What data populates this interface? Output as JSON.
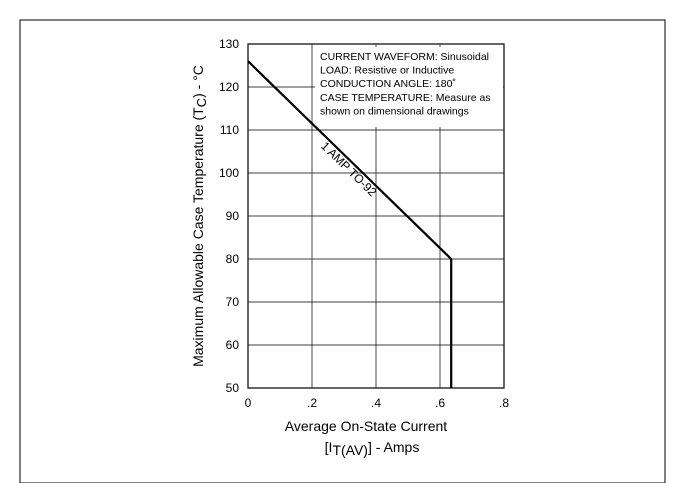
{
  "chart_data": {
    "type": "line",
    "title": "",
    "xlabel_line1": "Average On-State Current",
    "xlabel_line2_prefix": "[I",
    "xlabel_line2_sub": "T(AV)",
    "xlabel_line2_suffix": "] - Amps",
    "ylabel_prefix": "Maximum Allowable Case Temperature (T",
    "ylabel_sub": "C",
    "ylabel_suffix": ") - °C",
    "xlim": [
      0,
      0.8
    ],
    "ylim": [
      50,
      130
    ],
    "x_ticks": [
      0,
      0.2,
      0.4,
      0.6,
      0.8
    ],
    "x_tick_labels": [
      "0",
      ".2",
      ".4",
      ".6",
      ".8"
    ],
    "y_ticks": [
      50,
      60,
      70,
      80,
      90,
      100,
      110,
      120,
      130
    ],
    "y_tick_labels": [
      "50",
      "60",
      "70",
      "80",
      "90",
      "100",
      "110",
      "120",
      "130"
    ],
    "grid": true,
    "series": [
      {
        "name": "1 AMP TO-92",
        "x": [
          0,
          0.635,
          0.635
        ],
        "y": [
          126,
          80,
          50
        ]
      }
    ],
    "annotation_lines": [
      "CURRENT WAVEFORM: Sinusoidal",
      "LOAD: Resistive or Inductive",
      "CONDUCTION ANGLE: 180˚",
      "CASE TEMPERATURE: Measure as",
      "shown on dimensional drawings"
    ]
  }
}
